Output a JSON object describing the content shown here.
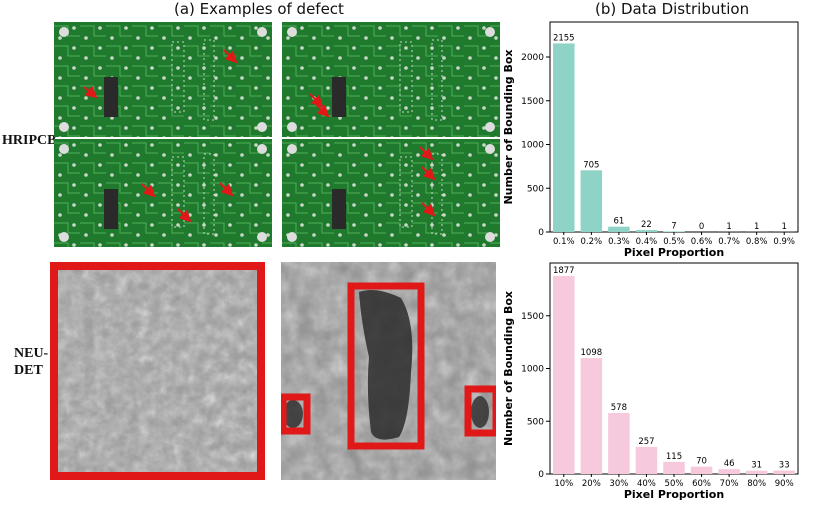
{
  "left_title": "(a) Examples of defect",
  "right_title": "(b) Data Distribution",
  "row_labels": {
    "hripcb": "HRIPCB",
    "neu_line1": "NEU-",
    "neu_line2": "DET"
  },
  "colors": {
    "teal": "#8fd3c7",
    "pink": "#f6c9dc",
    "pcb_green": "#1f7a2e",
    "defect_red": "#e01818"
  },
  "chart_data": [
    {
      "type": "bar",
      "categories": [
        "0.1%",
        "0.2%",
        "0.3%",
        "0.4%",
        "0.5%",
        "0.6%",
        "0.7%",
        "0.8%",
        "0.9%"
      ],
      "values": [
        2155,
        705,
        61,
        22,
        7,
        0,
        1,
        1,
        1
      ],
      "xlabel": "Pixel Proportion",
      "ylabel": "Number of Bounding Box",
      "ylim": [
        0,
        2400
      ],
      "yticks": [
        0,
        500,
        1000,
        1500,
        2000
      ],
      "color": "#8fd3c7"
    },
    {
      "type": "bar",
      "categories": [
        "10%",
        "20%",
        "30%",
        "40%",
        "50%",
        "60%",
        "70%",
        "80%",
        "90%"
      ],
      "values": [
        1877,
        1098,
        578,
        257,
        115,
        70,
        46,
        31,
        33
      ],
      "xlabel": "Pixel Proportion",
      "ylabel": "Number of Bounding Box",
      "ylim": [
        0,
        2000
      ],
      "yticks": [
        0,
        500,
        1000,
        1500
      ],
      "color": "#f6c9dc"
    }
  ]
}
